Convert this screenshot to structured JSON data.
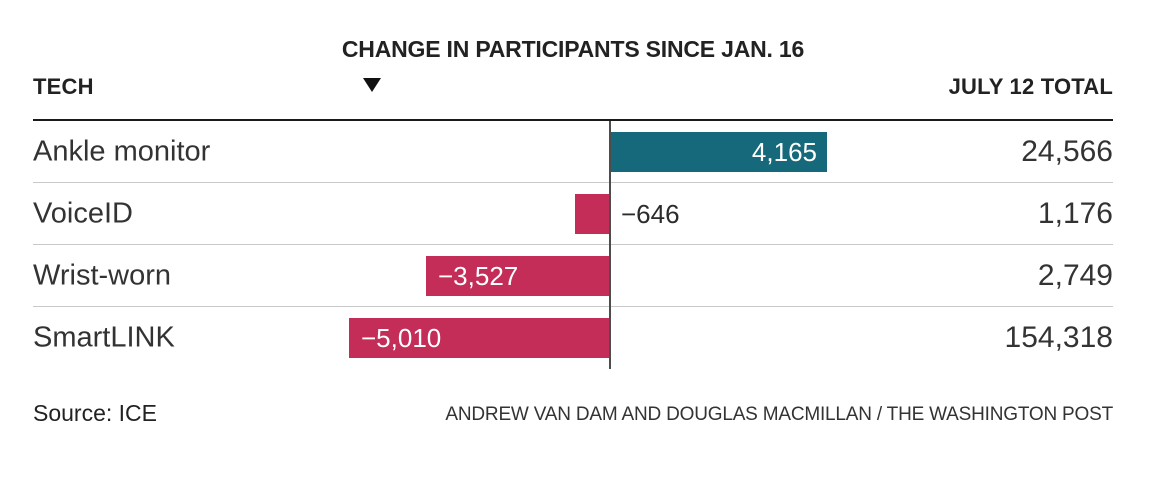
{
  "chart_data": {
    "type": "bar",
    "orientation": "horizontal",
    "title": "CHANGE IN PARTICIPANTS SINCE JAN. 16",
    "sort_indicator": "descending",
    "columns": {
      "tech": "TECH",
      "total": "JULY 12 TOTAL"
    },
    "categories": [
      "Ankle monitor",
      "VoiceID",
      "Wrist-worn",
      "SmartLINK"
    ],
    "series": [
      {
        "name": "Change in participants since Jan. 16",
        "values": [
          4165,
          -646,
          -3527,
          -5010
        ]
      },
      {
        "name": "July 12 total",
        "values": [
          24566,
          1176,
          2749,
          154318
        ]
      }
    ],
    "value_labels": [
      "4,165",
      "−646",
      "−3,527",
      "−5,010"
    ],
    "total_labels": [
      "24,566",
      "1,176",
      "2,749",
      "154,318"
    ],
    "axis": {
      "zero_line_shown": true,
      "gridlines": false,
      "approx_range": [
        -5200,
        4300
      ]
    },
    "colors": {
      "positive": "#15697a",
      "negative": "#c32d58"
    }
  },
  "rows": [
    {
      "label": "Ankle monitor",
      "change_label": "4,165",
      "total_label": "24,566"
    },
    {
      "label": "VoiceID",
      "change_label": "−646",
      "total_label": "1,176"
    },
    {
      "label": "Wrist-worn",
      "change_label": "−3,527",
      "total_label": "2,749"
    },
    {
      "label": "SmartLINK",
      "change_label": "−5,010",
      "total_label": "154,318"
    }
  ],
  "footer": {
    "source": "Source: ICE",
    "credit": "ANDREW VAN DAM AND DOUGLAS MACMILLAN / THE WASHINGTON POST"
  }
}
